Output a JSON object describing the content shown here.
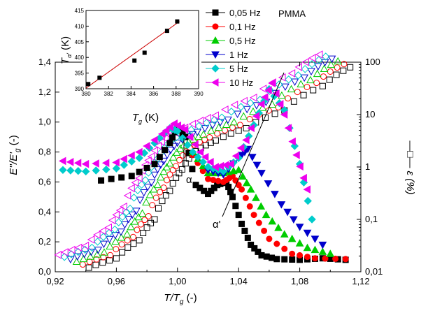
{
  "chart_data": {
    "type": "scatter",
    "title": "",
    "plot_label": "PMMA",
    "xlabel": "T/T",
    "xlabel_sub": "g",
    "xlabel_tail": " (-)",
    "ylabel_left": "E''/E'",
    "ylabel_left_sub": "g",
    "ylabel_left_tail": " (-)",
    "ylabel_right": "ε (%)",
    "ylabel_right_prefix": "—□—",
    "xlim": [
      0.92,
      1.12
    ],
    "ylim_left": [
      0.0,
      1.4
    ],
    "ylim_right": [
      0.01,
      100
    ],
    "right_scale": "log",
    "x_ticks": [
      "0,92",
      "0,96",
      "1,00",
      "1,04",
      "1,08",
      "1,12"
    ],
    "y_left_ticks": [
      "0,0",
      "0,2",
      "0,4",
      "0,6",
      "0,8",
      "1,0",
      "1,2",
      "1,4"
    ],
    "y_right_ticks": [
      "0,01",
      "0,1",
      "1",
      "10",
      "100"
    ],
    "legend_position": "top-right",
    "annotations": [
      {
        "text": "α",
        "x": 1.0,
        "y": 0.68
      },
      {
        "text": "α'",
        "x": 1.025,
        "y": 0.3
      }
    ],
    "series": [
      {
        "name": "0,05 Hz",
        "color": "#000000",
        "marker": "square",
        "loss_x": [
          0.95,
          0.97,
          0.985,
          0.995,
          1.0,
          1.005,
          1.012,
          1.02,
          1.026,
          1.032,
          1.036,
          1.042,
          1.048,
          1.055,
          1.065,
          1.08,
          1.095,
          1.11
        ],
        "loss_y": [
          0.61,
          0.64,
          0.72,
          0.86,
          0.97,
          0.9,
          0.58,
          0.52,
          0.58,
          0.6,
          0.5,
          0.32,
          0.18,
          0.11,
          0.085,
          0.08,
          0.09,
          0.08
        ],
        "strain_x": [
          0.942,
          0.96,
          0.975,
          0.985,
          0.995,
          1.003,
          1.012,
          1.025,
          1.045,
          1.07,
          1.095,
          1.113
        ],
        "strain_y": [
          0.012,
          0.018,
          0.04,
          0.1,
          0.35,
          0.9,
          2.0,
          3.2,
          5.5,
          12,
          35,
          80
        ]
      },
      {
        "name": "0,1 Hz",
        "color": "#ff0000",
        "marker": "circle",
        "loss_x": [
          1.01,
          1.02,
          1.03,
          1.036,
          1.042,
          1.05,
          1.06,
          1.075,
          1.09,
          1.11
        ],
        "loss_y": [
          0.78,
          0.62,
          0.6,
          0.64,
          0.55,
          0.38,
          0.22,
          0.12,
          0.09,
          0.085
        ],
        "strain_x": [],
        "strain_y": []
      },
      {
        "name": "0,5 Hz",
        "color": "#00cc00",
        "marker": "triangle-up",
        "loss_x": [
          1.01,
          1.02,
          1.03,
          1.04,
          1.048,
          1.058,
          1.07,
          1.085,
          1.1
        ],
        "loss_y": [
          0.8,
          0.66,
          0.66,
          0.68,
          0.55,
          0.38,
          0.25,
          0.16,
          0.12
        ],
        "strain_x": [],
        "strain_y": []
      },
      {
        "name": "1 Hz",
        "color": "#0000cc",
        "marker": "triangle-down",
        "loss_x": [
          1.02,
          1.03,
          1.04,
          1.046,
          1.055,
          1.068,
          1.08,
          1.095
        ],
        "loss_y": [
          0.68,
          0.65,
          0.76,
          0.82,
          0.66,
          0.45,
          0.3,
          0.18
        ],
        "strain_x": [],
        "strain_y": []
      },
      {
        "name": "5 Hz",
        "color": "#00cccc",
        "marker": "diamond",
        "loss_x": [
          0.925,
          0.94,
          0.96,
          0.975,
          0.985,
          0.995,
          1.0,
          1.01,
          1.02,
          1.03,
          1.04,
          1.05,
          1.06,
          1.07,
          1.08,
          1.088
        ],
        "loss_y": [
          0.68,
          0.67,
          0.69,
          0.76,
          0.86,
          0.96,
          0.94,
          0.8,
          0.7,
          0.67,
          0.76,
          0.98,
          1.22,
          1.08,
          0.72,
          0.35
        ],
        "strain_x": [],
        "strain_y": []
      },
      {
        "name": "10 Hz",
        "color": "#ee00ee",
        "marker": "triangle-left",
        "loss_x": [
          0.925,
          0.94,
          0.96,
          0.975,
          0.99,
          0.998,
          1.005,
          1.015,
          1.025,
          1.035,
          1.045,
          1.055,
          1.062,
          1.07,
          1.078,
          1.085
        ],
        "loss_y": [
          0.74,
          0.72,
          0.73,
          0.8,
          0.92,
          0.99,
          0.95,
          0.8,
          0.7,
          0.72,
          0.88,
          1.12,
          1.26,
          1.05,
          0.78,
          0.55
        ],
        "strain_x": [],
        "strain_y": []
      }
    ],
    "inset": {
      "ylabel": "T",
      "ylabel_sub": "α'",
      "ylabel_tail": " (K)",
      "xlabel": "T",
      "xlabel_sub": "g",
      "xlabel_tail": " (K)",
      "xlim": [
        380,
        390
      ],
      "ylim": [
        390,
        415
      ],
      "x_ticks": [
        "380",
        "382",
        "384",
        "386",
        "388",
        "390"
      ],
      "y_ticks": [
        "390",
        "395",
        "400",
        "405",
        "410",
        "415"
      ],
      "points_x": [
        380.2,
        381.2,
        384.3,
        385.2,
        387.2,
        388.1
      ],
      "points_y": [
        391.5,
        393.5,
        399.0,
        401.5,
        408.5,
        411.5
      ],
      "fit_x": [
        380,
        388.3
      ],
      "fit_y": [
        390.2,
        411.5
      ],
      "fit_color": "#cc0000"
    }
  }
}
